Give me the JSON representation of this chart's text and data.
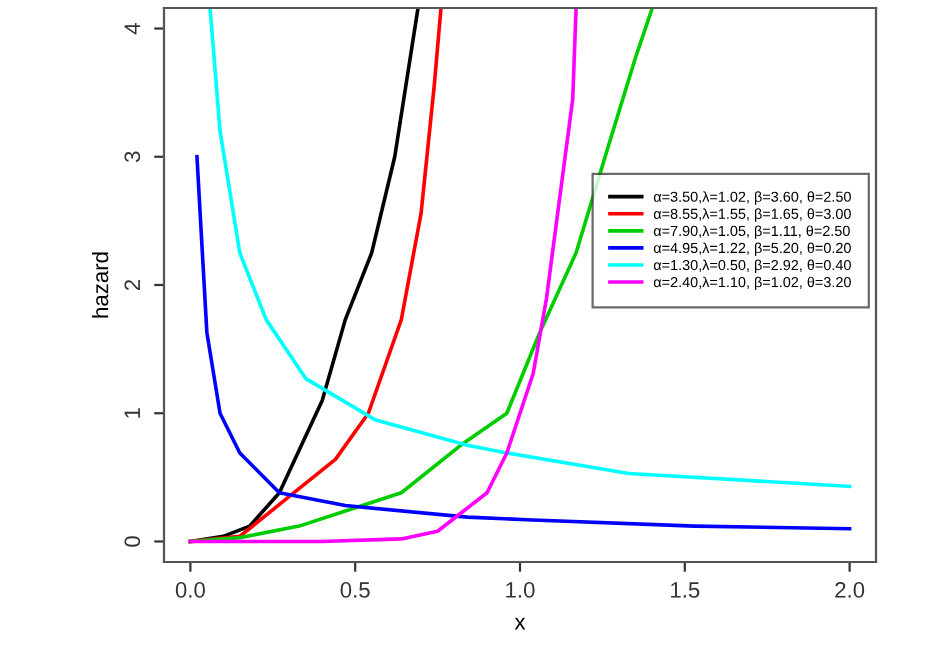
{
  "chart_data": {
    "type": "line",
    "xlabel": "x",
    "ylabel": "hazard",
    "xlim": [
      -0.08,
      2.08
    ],
    "ylim": [
      -0.16,
      4.16
    ],
    "xticks": [
      {
        "value": 0,
        "label": "0.0"
      },
      0.5,
      {
        "value": 1,
        "label": "1.0"
      },
      1.5,
      {
        "value": 2,
        "label": "2.0"
      }
    ],
    "yticks": [
      0,
      1,
      2,
      3,
      4
    ],
    "grid": false,
    "legend": "right",
    "marker": "none",
    "line_style": "solid",
    "series": [
      {
        "name": "α=3.50,λ=1.02, β=3.60, θ=2.50",
        "color": "#000000",
        "x": [
          0,
          0.1,
          0.18,
          0.27,
          0.4,
          0.47,
          0.55,
          0.62,
          0.69
        ],
        "values": [
          0,
          0.04,
          0.12,
          0.38,
          1.1,
          1.73,
          2.25,
          3.0,
          4.15
        ]
      },
      {
        "name": "α=8.55,λ=1.55, β=1.65, θ=3.00",
        "color": "#ff0000",
        "x": [
          0,
          0.15,
          0.29,
          0.44,
          0.54,
          0.64,
          0.7,
          0.74,
          0.76
        ],
        "values": [
          0,
          0.04,
          0.33,
          0.64,
          1.0,
          1.73,
          2.56,
          3.56,
          4.15
        ]
      },
      {
        "name": "α=7.90,λ=1.05, β=1.11, θ=2.50",
        "color": "#00cd00",
        "x": [
          0,
          0.15,
          0.33,
          0.64,
          0.82,
          0.96,
          1.06,
          1.17,
          1.27,
          1.35,
          1.4
        ],
        "values": [
          0,
          0.03,
          0.12,
          0.38,
          0.75,
          1.0,
          1.63,
          2.25,
          3.1,
          3.77,
          4.15
        ]
      },
      {
        "name": "α=4.95,λ=1.22, β=5.20, θ=0.20",
        "color": "#0000ff",
        "x": [
          0.02,
          0.05,
          0.09,
          0.15,
          0.27,
          0.47,
          0.84,
          1.02,
          1.53,
          2.0
        ],
        "values": [
          3.0,
          1.63,
          1.0,
          0.69,
          0.38,
          0.28,
          0.19,
          0.17,
          0.12,
          0.1
        ]
      },
      {
        "name": "α=1.30,λ=0.50, β=2.92, θ=0.40",
        "color": "#00ffff",
        "x": [
          0.06,
          0.09,
          0.15,
          0.23,
          0.35,
          0.56,
          0.84,
          0.96,
          1.33,
          2.0
        ],
        "values": [
          4.15,
          3.2,
          2.25,
          1.73,
          1.27,
          0.95,
          0.75,
          0.69,
          0.53,
          0.43
        ]
      },
      {
        "name": "α=2.40,λ=1.10, β=1.02, θ=3.20",
        "color": "#ff00ff",
        "x": [
          0,
          0.4,
          0.64,
          0.75,
          0.82,
          0.9,
          0.96,
          1.04,
          1.08,
          1.12,
          1.16,
          1.17
        ],
        "values": [
          0,
          0.0,
          0.02,
          0.08,
          0.22,
          0.38,
          0.69,
          1.31,
          1.89,
          2.67,
          3.45,
          4.15
        ]
      }
    ]
  }
}
